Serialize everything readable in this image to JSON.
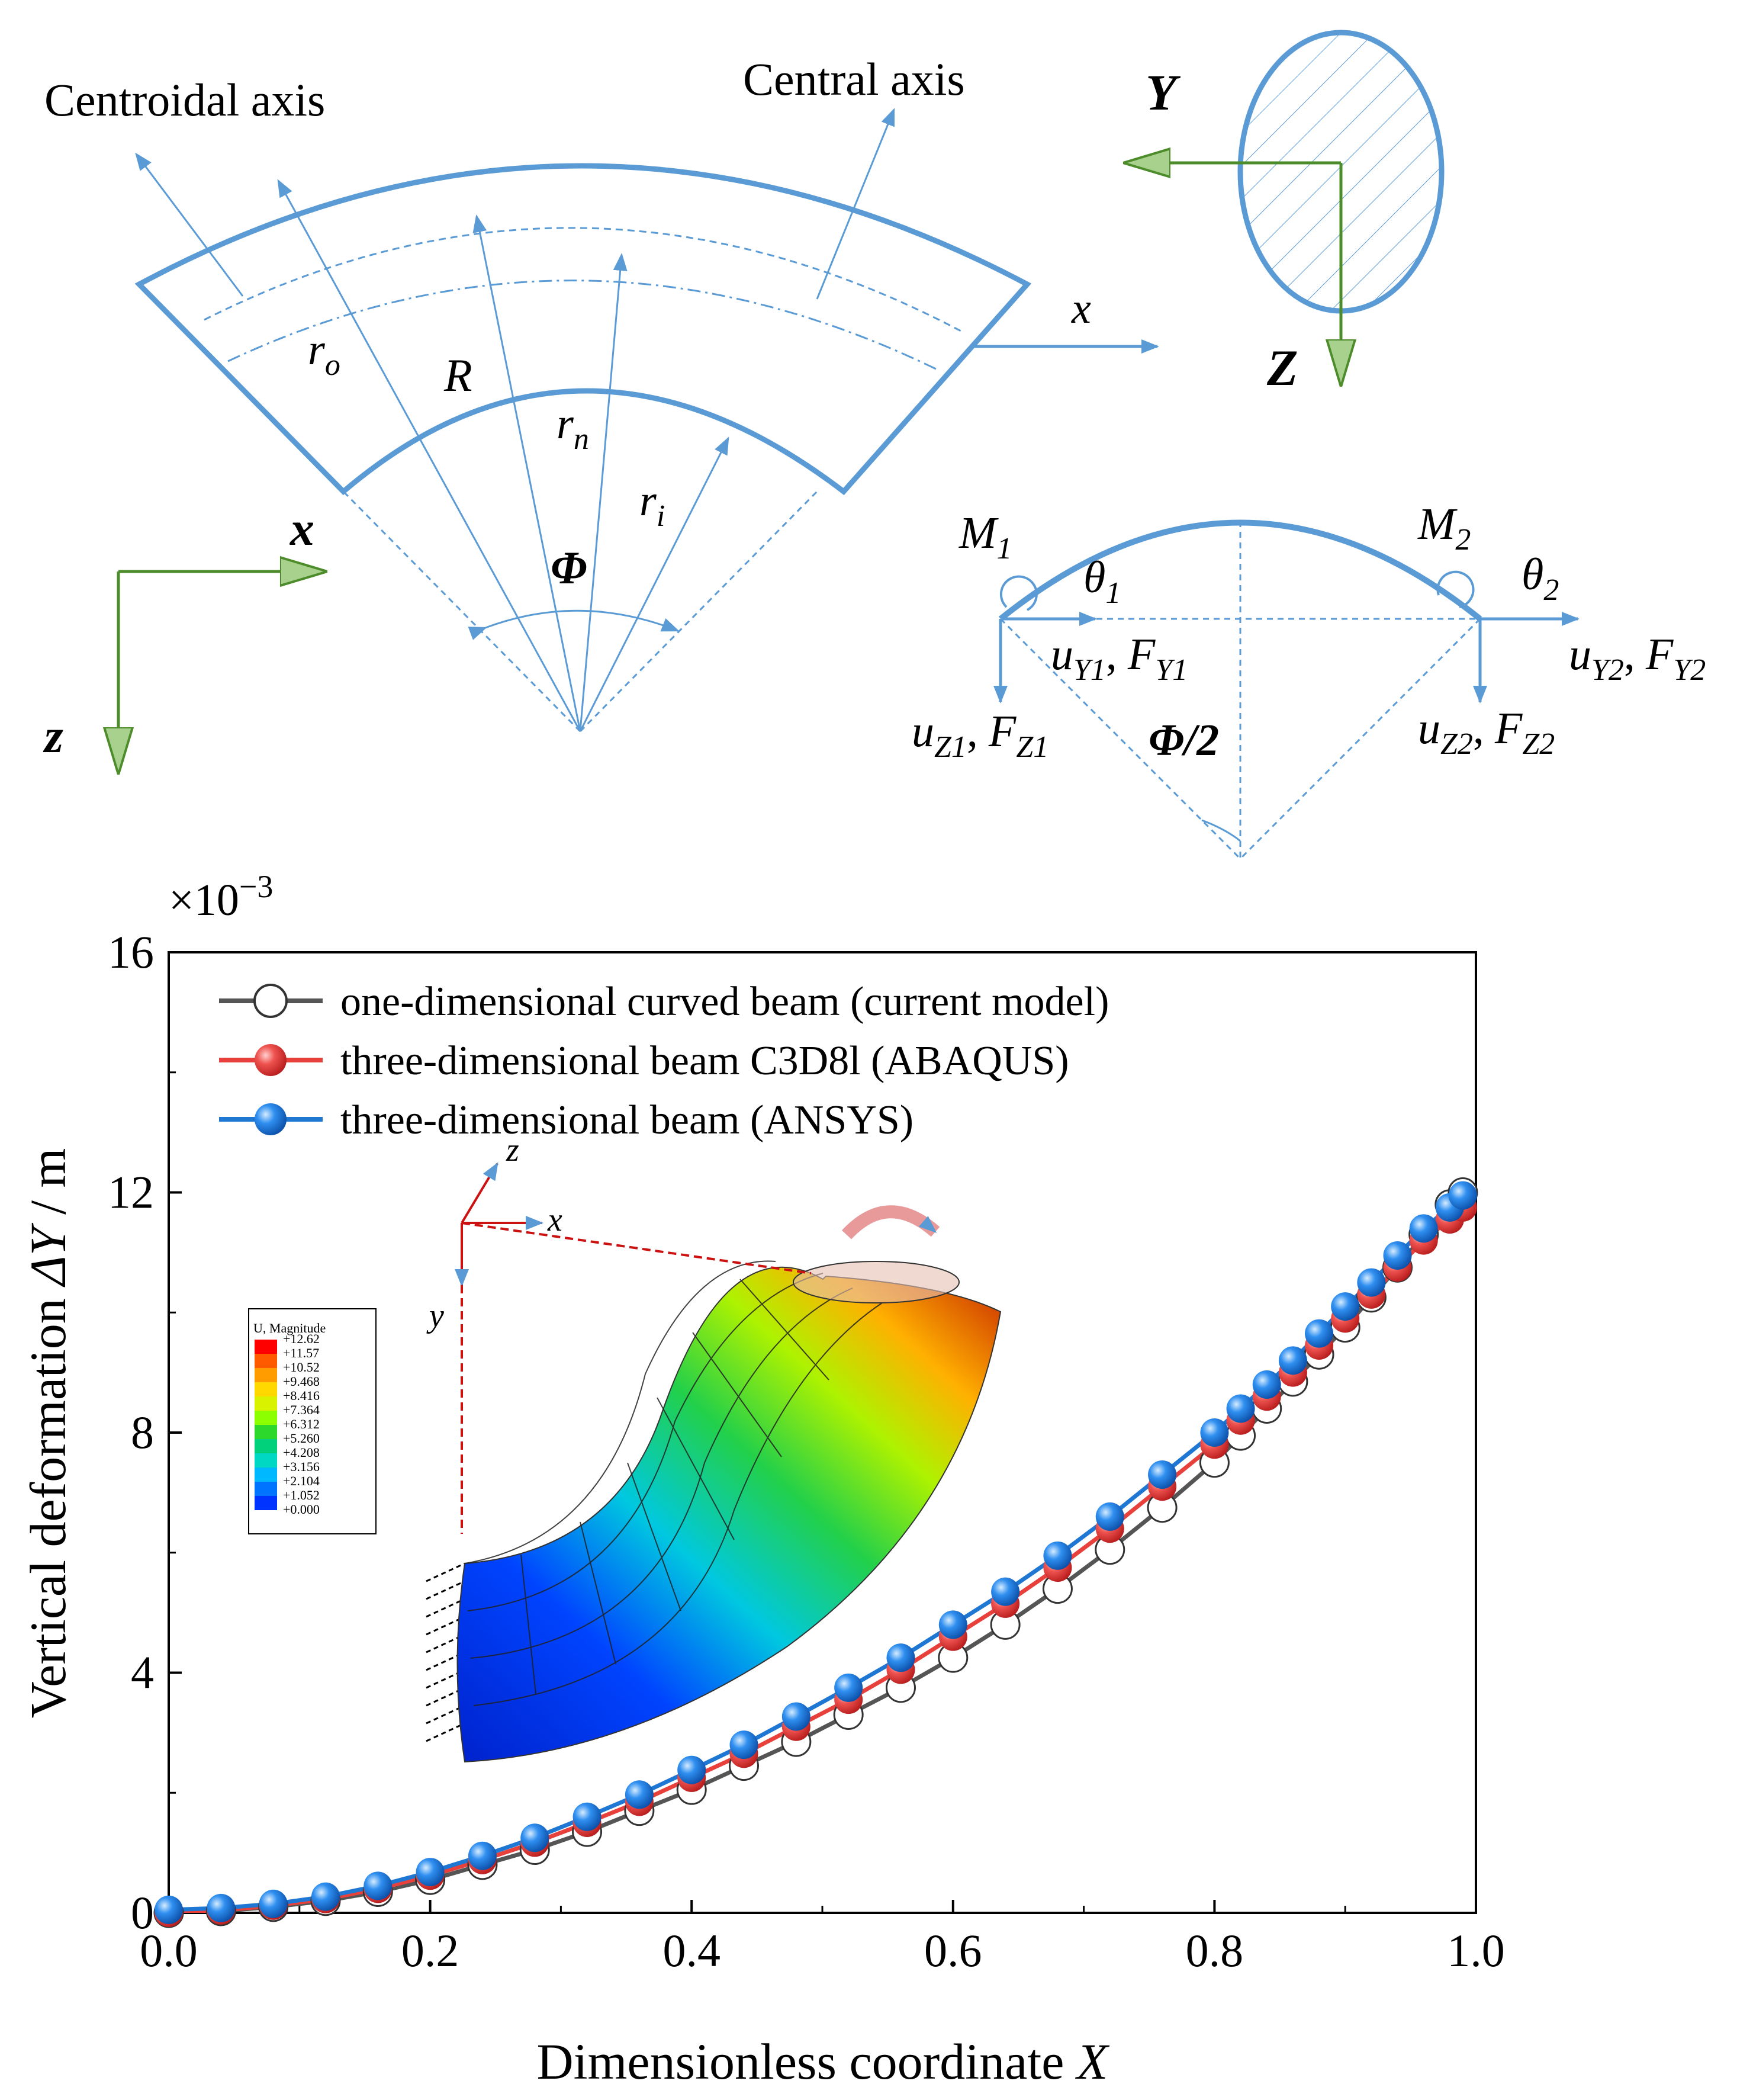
{
  "schematic": {
    "centroidal_axis_label": "Centroidal axis",
    "central_axis_label": "Central axis",
    "r_o": "r",
    "r_o_sub": "o",
    "R": "R",
    "r_n": "r",
    "r_n_sub": "n",
    "r_i": "r",
    "r_i_sub": "i",
    "phi": "Φ",
    "x_local": "x",
    "x_global": "x",
    "z_global": "z",
    "Y_axis": "Y",
    "Z_axis": "Z",
    "colors": {
      "beam": "#5b9bd5",
      "axes": "#4d8c2a",
      "arrow_fill": "#a9d18e"
    }
  },
  "fbd": {
    "M1": "M",
    "M1_sub": "1",
    "M2": "M",
    "M2_sub": "2",
    "theta1": "θ",
    "theta1_sub": "1",
    "theta2": "θ",
    "theta2_sub": "2",
    "uY1": "u",
    "uY1_sub": "Y1",
    "FY1": "F",
    "FY1_sub": "Y1",
    "uZ1": "u",
    "uZ1_sub": "Z1",
    "FZ1": "F",
    "FZ1_sub": "Z1",
    "uY2": "u",
    "uY2_sub": "Y2",
    "FY2": "F",
    "FY2_sub": "Y2",
    "uZ2": "u",
    "uZ2_sub": "Z2",
    "FZ2": "F",
    "FZ2_sub": "Z2",
    "half_angle": "Φ/2",
    "sep": ","
  },
  "chart_data": {
    "type": "line",
    "xlabel_text": "Dimensionless coordinate ",
    "xlabel_var": "X",
    "ylabel_text": "Vertical deformation ",
    "ylabel_var": "ΔY",
    "ylabel_unit": " / m",
    "y_scale_label": "×10",
    "y_scale_exp": "−3",
    "xlim": [
      0,
      1
    ],
    "ylim": [
      0,
      16
    ],
    "xticks": [
      "0.0",
      "0.2",
      "0.4",
      "0.6",
      "0.8",
      "1.0"
    ],
    "yticks": [
      "0",
      "4",
      "8",
      "12",
      "16"
    ],
    "legend_position": "top-left",
    "x": [
      0.0,
      0.04,
      0.08,
      0.12,
      0.16,
      0.2,
      0.24,
      0.28,
      0.32,
      0.36,
      0.4,
      0.44,
      0.48,
      0.52,
      0.56,
      0.6,
      0.64,
      0.68,
      0.72,
      0.76,
      0.8,
      0.82,
      0.84,
      0.86,
      0.88,
      0.9,
      0.92,
      0.94,
      0.96,
      0.98,
      0.99
    ],
    "series": [
      {
        "name": "one-dimensional curved beam (current model)",
        "color": "#555555",
        "marker": "open-circle",
        "values": [
          0.0,
          0.03,
          0.1,
          0.2,
          0.35,
          0.55,
          0.8,
          1.05,
          1.35,
          1.7,
          2.05,
          2.45,
          2.85,
          3.3,
          3.75,
          4.25,
          4.8,
          5.4,
          6.05,
          6.75,
          7.5,
          7.95,
          8.4,
          8.85,
          9.3,
          9.75,
          10.25,
          10.75,
          11.3,
          11.8,
          12.0
        ]
      },
      {
        "name": "three-dimensional beam C3D8l (ABAQUS)",
        "color": "#e8413c",
        "marker": "filled-circle",
        "values": [
          0.0,
          0.04,
          0.12,
          0.23,
          0.4,
          0.62,
          0.88,
          1.17,
          1.5,
          1.85,
          2.25,
          2.65,
          3.1,
          3.55,
          4.05,
          4.6,
          5.15,
          5.75,
          6.4,
          7.1,
          7.8,
          8.2,
          8.6,
          9.0,
          9.45,
          9.9,
          10.3,
          10.75,
          11.2,
          11.55,
          11.75
        ]
      },
      {
        "name": "three-dimensional beam (ANSYS)",
        "color": "#1f77d4",
        "marker": "filled-circle",
        "values": [
          0.05,
          0.08,
          0.15,
          0.27,
          0.45,
          0.68,
          0.95,
          1.25,
          1.6,
          1.97,
          2.38,
          2.8,
          3.27,
          3.75,
          4.25,
          4.8,
          5.35,
          5.95,
          6.6,
          7.3,
          8.0,
          8.4,
          8.8,
          9.2,
          9.65,
          10.1,
          10.5,
          10.95,
          11.4,
          11.75,
          11.95
        ]
      }
    ]
  },
  "inset": {
    "legend_title": "U, Magnitude",
    "legend_values": [
      "+12.62",
      "+11.57",
      "+10.52",
      "+9.468",
      "+8.416",
      "+7.364",
      "+6.312",
      "+5.260",
      "+4.208",
      "+3.156",
      "+2.104",
      "+1.052",
      "+0.000"
    ],
    "legend_colors": [
      "#ff0000",
      "#ff5a00",
      "#ff9d00",
      "#ffd800",
      "#d9f200",
      "#8cff00",
      "#2bd82b",
      "#00d17a",
      "#00d8c4",
      "#00b8ff",
      "#0073ff",
      "#0033ff",
      "#0000cc"
    ],
    "axis_x": "x",
    "axis_y": "y",
    "axis_z": "z"
  }
}
